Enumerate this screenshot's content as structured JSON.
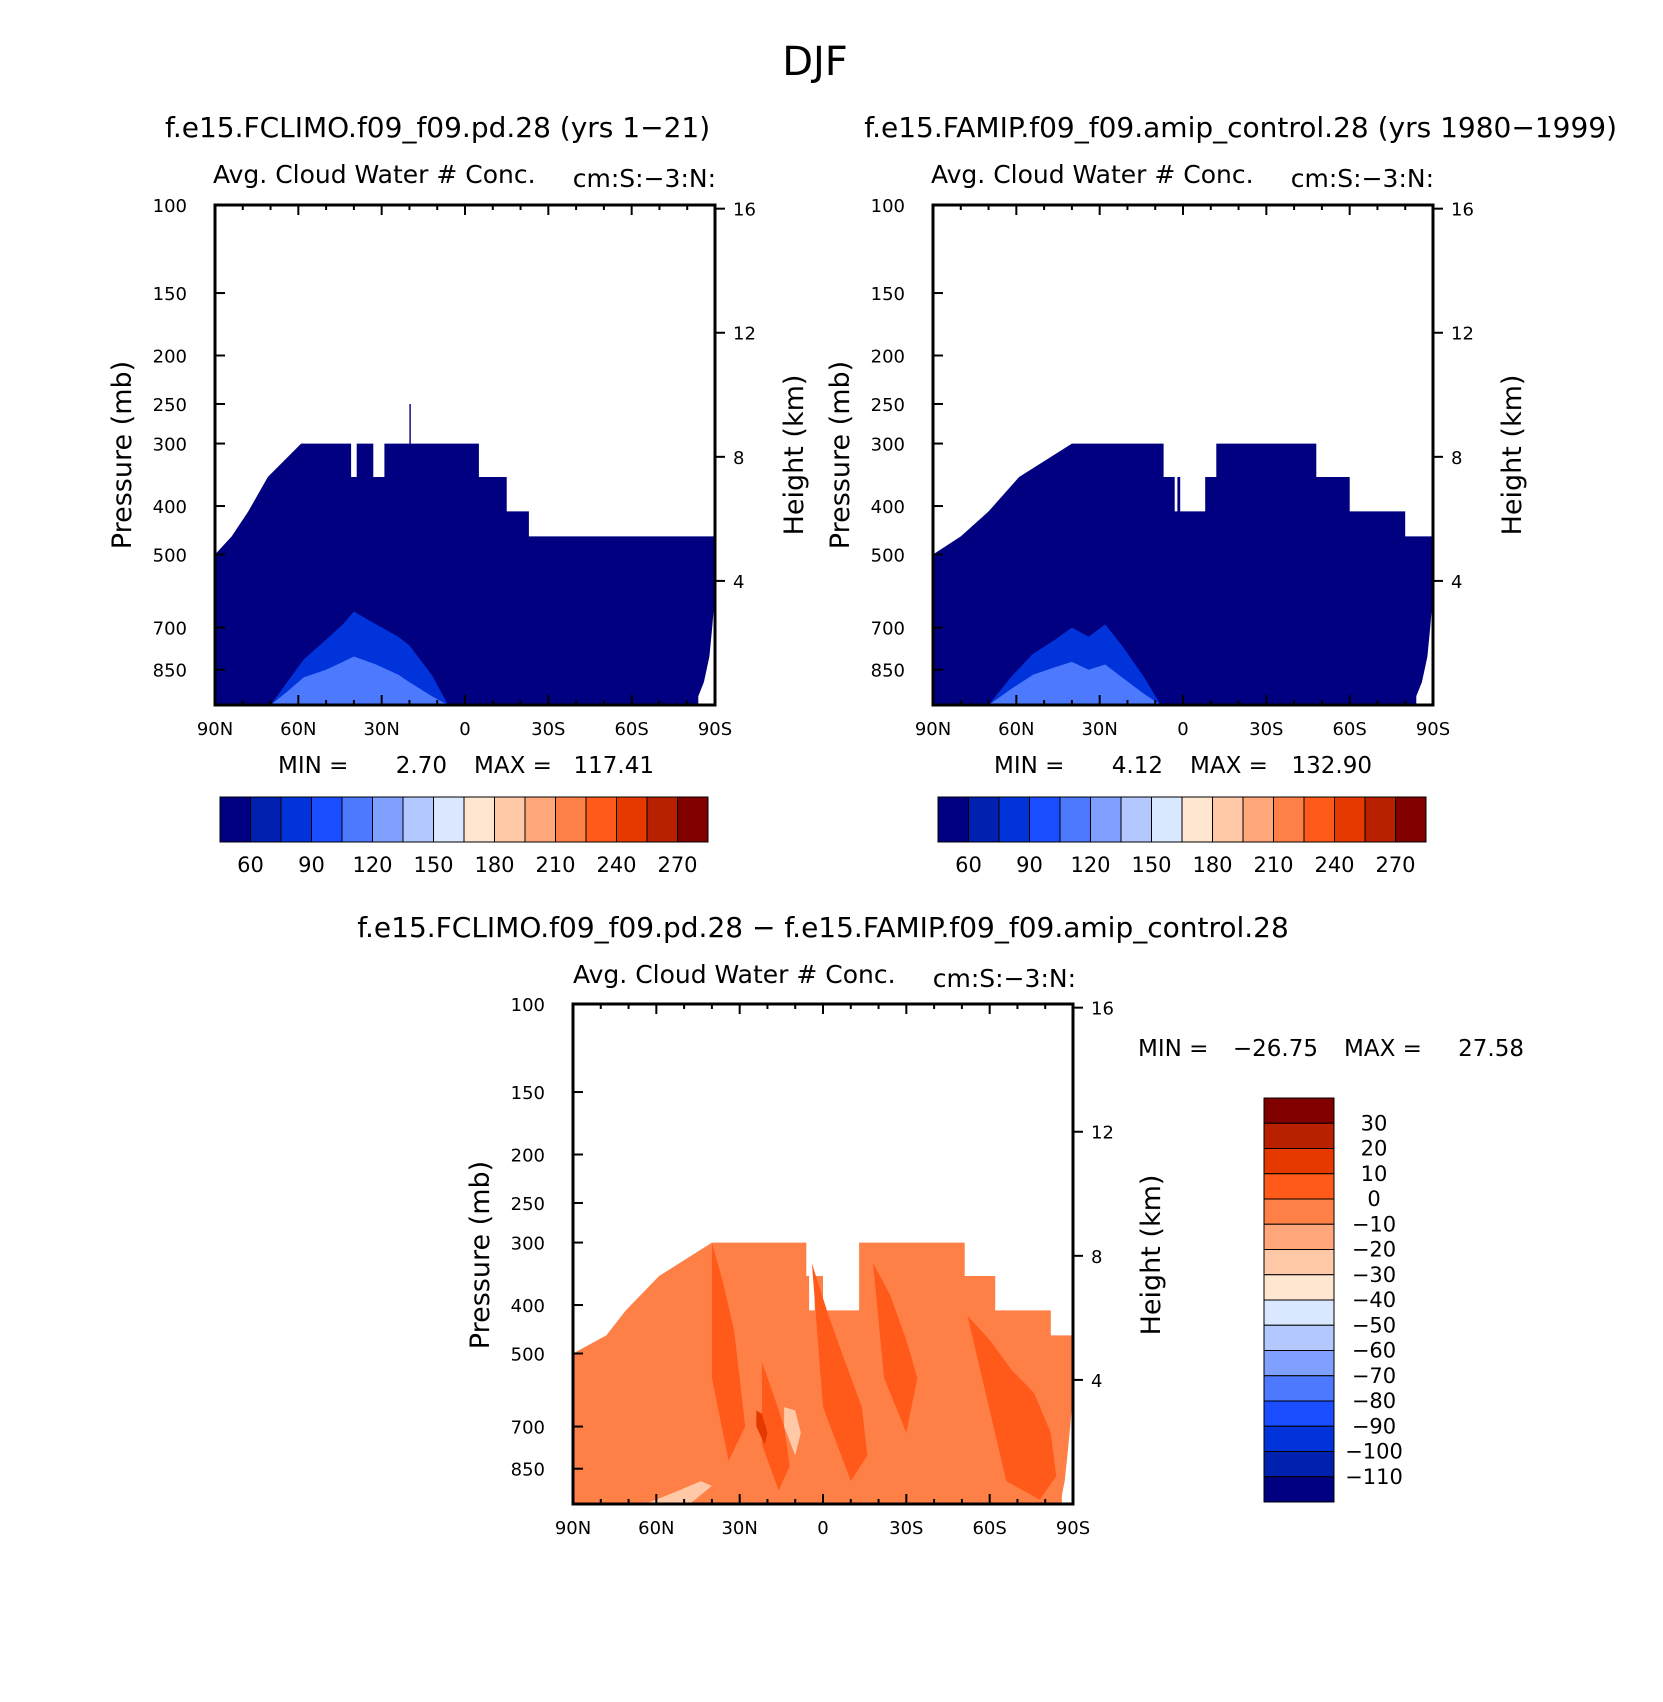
{
  "figure": {
    "title": "DJF",
    "diff_title": "f.e15.FCLIMO.f09_f09.pd.28 − f.e15.FAMIP.f09_f09.amip_control.28"
  },
  "colors": {
    "seq_palette": [
      "#000080",
      "#0020b0",
      "#0033d9",
      "#1a4dff",
      "#4d79ff",
      "#80a0ff",
      "#b3c8ff",
      "#d9e8ff",
      "#ffe6d1",
      "#ffc9a8",
      "#ffa77a",
      "#ff8047",
      "#ff5a1a",
      "#e63900",
      "#b82000",
      "#800000"
    ],
    "diff_palette": [
      "#000080",
      "#0020b0",
      "#0033d9",
      "#1a4dff",
      "#4d79ff",
      "#80a0ff",
      "#b3c8ff",
      "#d9e8ff",
      "#ffe6d1",
      "#ffc9a8",
      "#ffa77a",
      "#ff8047",
      "#ff5a1a",
      "#e63900",
      "#b82000",
      "#800000"
    ]
  },
  "chart_data": [
    {
      "type": "heatmap",
      "title": "f.e15.FCLIMO.f09_f09.pd.28 (yrs 1−21)",
      "subtitle": "Avg. Cloud Water # Conc.",
      "units": "cm:S:−3:N:",
      "xlabel": "",
      "ylabel": "Pressure (mb)",
      "ylabel_right": "Height (km)",
      "x_ticks": [
        "90N",
        "60N",
        "30N",
        "0",
        "30S",
        "60S",
        "90S"
      ],
      "xlim": [
        90,
        -90
      ],
      "y_ticks": [
        100,
        150,
        200,
        250,
        300,
        400,
        500,
        700,
        850
      ],
      "ylim": [
        100,
        1000
      ],
      "y_right_ticks": [
        16,
        12,
        8,
        4
      ],
      "stats": {
        "min_label": "MIN =",
        "min": "2.70",
        "max_label": "MAX =",
        "max": "117.41"
      },
      "colorbar": {
        "orientation": "horizontal",
        "labels": [
          "60",
          "90",
          "120",
          "150",
          "180",
          "210",
          "240",
          "270"
        ]
      },
      "cloud_top": [
        [
          90,
          500
        ],
        [
          84,
          460
        ],
        [
          78,
          410
        ],
        [
          71,
          350
        ],
        [
          59,
          300
        ],
        [
          41,
          300
        ],
        [
          41,
          350
        ],
        [
          39,
          350
        ],
        [
          39,
          300
        ],
        [
          33,
          300
        ],
        [
          33,
          350
        ],
        [
          29,
          350
        ],
        [
          29,
          300
        ],
        [
          20,
          300
        ],
        [
          20,
          250
        ],
        [
          19.5,
          250
        ],
        [
          19.5,
          300
        ],
        [
          -5,
          300
        ],
        [
          -5,
          350
        ],
        [
          -15,
          350
        ],
        [
          -15,
          410
        ],
        [
          -23,
          410
        ],
        [
          -23,
          460
        ],
        [
          -90,
          460
        ]
      ],
      "cloud_bottom_edge": [
        [
          -84,
          1000
        ],
        [
          -84,
          960
        ],
        [
          -86,
          900
        ],
        [
          -88,
          800
        ],
        [
          -89,
          700
        ],
        [
          -90,
          600
        ],
        [
          -90,
          460
        ]
      ],
      "enhanced_region": {
        "lat": [
          70,
          64,
          58,
          50,
          44,
          40,
          32,
          24,
          20,
          12,
          6
        ],
        "top_levels": [
          1000,
          900,
          810,
          740,
          690,
          650,
          690,
          730,
          760,
          870,
          1000
        ],
        "inner_levels": [
          1000,
          940,
          880,
          850,
          820,
          800,
          830,
          870,
          900,
          960,
          1000
        ]
      }
    },
    {
      "type": "heatmap",
      "title": "f.e15.FAMIP.f09_f09.amip_control.28 (yrs 1980−1999)",
      "subtitle": "Avg. Cloud Water # Conc.",
      "units": "cm:S:−3:N:",
      "xlabel": "",
      "ylabel": "Pressure (mb)",
      "ylabel_right": "Height (km)",
      "x_ticks": [
        "90N",
        "60N",
        "30N",
        "0",
        "30S",
        "60S",
        "90S"
      ],
      "xlim": [
        90,
        -90
      ],
      "y_ticks": [
        100,
        150,
        200,
        250,
        300,
        400,
        500,
        700,
        850
      ],
      "ylim": [
        100,
        1000
      ],
      "y_right_ticks": [
        16,
        12,
        8,
        4
      ],
      "stats": {
        "min_label": "MIN =",
        "min": "4.12",
        "max_label": "MAX =",
        "max": "132.90"
      },
      "colorbar": {
        "orientation": "horizontal",
        "labels": [
          "60",
          "90",
          "120",
          "150",
          "180",
          "210",
          "240",
          "270"
        ]
      },
      "cloud_top": [
        [
          90,
          500
        ],
        [
          80,
          460
        ],
        [
          70,
          410
        ],
        [
          59,
          350
        ],
        [
          40,
          300
        ],
        [
          7,
          300
        ],
        [
          7,
          350
        ],
        [
          3,
          350
        ],
        [
          3,
          410
        ],
        [
          2,
          410
        ],
        [
          2,
          350
        ],
        [
          1,
          350
        ],
        [
          1,
          410
        ],
        [
          -8,
          410
        ],
        [
          -8,
          350
        ],
        [
          -12,
          350
        ],
        [
          -12,
          300
        ],
        [
          -48,
          300
        ],
        [
          -48,
          350
        ],
        [
          -60,
          350
        ],
        [
          -60,
          410
        ],
        [
          -80,
          410
        ],
        [
          -80,
          460
        ],
        [
          -90,
          460
        ]
      ],
      "cloud_bottom_edge": [
        [
          -84,
          1000
        ],
        [
          -84,
          960
        ],
        [
          -86,
          900
        ],
        [
          -88,
          800
        ],
        [
          -89,
          700
        ],
        [
          -90,
          600
        ],
        [
          -90,
          460
        ]
      ],
      "enhanced_region": {
        "lat": [
          70,
          62,
          54,
          46,
          40,
          34,
          28,
          22,
          14,
          8
        ],
        "top_levels": [
          1000,
          880,
          790,
          740,
          700,
          730,
          690,
          760,
          880,
          1000
        ],
        "inner_levels": [
          1000,
          930,
          870,
          840,
          820,
          850,
          830,
          880,
          950,
          1000
        ]
      }
    },
    {
      "type": "heatmap",
      "title": "",
      "subtitle": "Avg. Cloud Water # Conc.",
      "units": "cm:S:−3:N:",
      "xlabel": "",
      "ylabel": "Pressure (mb)",
      "ylabel_right": "Height (km)",
      "x_ticks": [
        "90N",
        "60N",
        "30N",
        "0",
        "30S",
        "60S",
        "90S"
      ],
      "xlim": [
        90,
        -90
      ],
      "y_ticks": [
        100,
        150,
        200,
        250,
        300,
        400,
        500,
        700,
        850
      ],
      "ylim": [
        100,
        1000
      ],
      "y_right_ticks": [
        16,
        12,
        8,
        4
      ],
      "stats": {
        "min_label": "MIN =",
        "min": "−26.75",
        "max_label": "MAX =",
        "max": "27.58"
      },
      "colorbar": {
        "orientation": "vertical",
        "labels": [
          "30",
          "20",
          "10",
          "0",
          "−10",
          "−20",
          "−30",
          "−40",
          "−50",
          "−60",
          "−70",
          "−80",
          "−90",
          "−100",
          "−110"
        ]
      },
      "cloud_top": [
        [
          90,
          500
        ],
        [
          78,
          460
        ],
        [
          71,
          410
        ],
        [
          59,
          350
        ],
        [
          40,
          300
        ],
        [
          6,
          300
        ],
        [
          6,
          350
        ],
        [
          5,
          350
        ],
        [
          5,
          410
        ],
        [
          3,
          410
        ],
        [
          3,
          350
        ],
        [
          0,
          350
        ],
        [
          0,
          410
        ],
        [
          -13,
          410
        ],
        [
          -13,
          300
        ],
        [
          -51,
          300
        ],
        [
          -51,
          350
        ],
        [
          -62,
          350
        ],
        [
          -62,
          410
        ],
        [
          -82,
          410
        ],
        [
          -82,
          460
        ],
        [
          -90,
          460
        ]
      ],
      "cloud_bottom_edge": [
        [
          -86,
          1000
        ],
        [
          -86,
          960
        ],
        [
          -87,
          900
        ],
        [
          -88,
          800
        ],
        [
          -89,
          700
        ],
        [
          -90,
          600
        ],
        [
          -90,
          460
        ]
      ],
      "positive_patches": [
        {
          "lat": [
            40,
            36,
            32,
            30,
            28,
            34,
            40
          ],
          "lev": [
            300,
            360,
            450,
            560,
            700,
            820,
            560
          ]
        },
        {
          "lat": [
            4,
            -2,
            -8,
            -14,
            -16,
            -10,
            0
          ],
          "lev": [
            330,
            420,
            520,
            640,
            800,
            900,
            640
          ]
        },
        {
          "lat": [
            -18,
            -24,
            -30,
            -34,
            -30,
            -22
          ],
          "lev": [
            330,
            380,
            470,
            560,
            720,
            560
          ]
        },
        {
          "lat": [
            -52,
            -60,
            -68,
            -76,
            -82,
            -84,
            -78,
            -66
          ],
          "lev": [
            420,
            470,
            540,
            600,
            720,
            880,
            980,
            900
          ]
        },
        {
          "lat": [
            22,
            18,
            14,
            12,
            16,
            22
          ],
          "lev": [
            520,
            600,
            700,
            840,
            940,
            760
          ]
        }
      ],
      "negative_patches": [
        {
          "lat": [
            14,
            10,
            8,
            10,
            14
          ],
          "lev": [
            640,
            650,
            720,
            800,
            700
          ]
        },
        {
          "lat": [
            64,
            52,
            44,
            40,
            48,
            60
          ],
          "lev": [
            1000,
            940,
            900,
            920,
            1000,
            1000
          ]
        }
      ],
      "strong_positive_patch": {
        "lat": [
          24,
          22,
          20,
          21,
          24
        ],
        "lev": [
          650,
          660,
          720,
          760,
          700
        ]
      }
    }
  ]
}
